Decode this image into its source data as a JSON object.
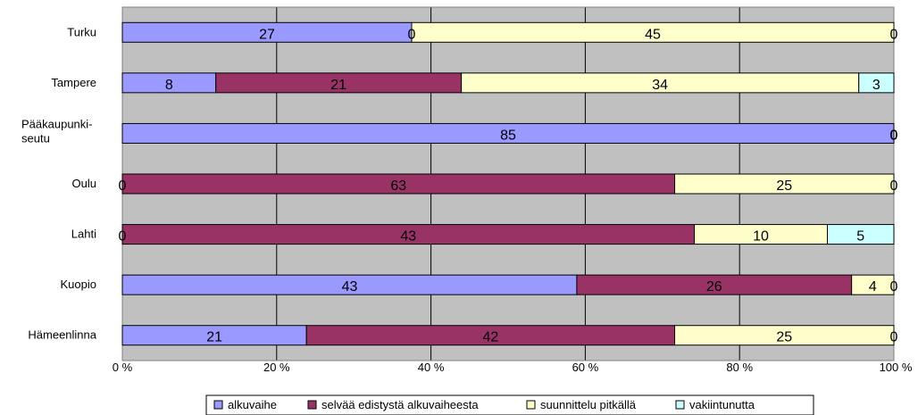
{
  "chart_data": {
    "type": "bar",
    "orientation": "horizontal",
    "stacked": "percent",
    "categories": [
      "Turku",
      "Tampere",
      "Pääkaupunki- seutu",
      "Oulu",
      "Lahti",
      "Kuopio",
      "Hämeenlinna"
    ],
    "category_lines": [
      [
        "Turku"
      ],
      [
        "Tampere"
      ],
      [
        "Pääkaupunki-",
        "seutu"
      ],
      [
        "Oulu"
      ],
      [
        "Lahti"
      ],
      [
        "Kuopio"
      ],
      [
        "Hämeenlinna"
      ]
    ],
    "series": [
      {
        "name": "alkuvaihe",
        "color": "#9999ff",
        "values": [
          27,
          8,
          85,
          0,
          0,
          43,
          21
        ]
      },
      {
        "name": "selvää edistystä alkuvaiheesta",
        "color": "#993366",
        "values": [
          0,
          21,
          0,
          63,
          43,
          26,
          42
        ]
      },
      {
        "name": "suunnittelu pitkällä",
        "color": "#ffffcc",
        "values": [
          45,
          34,
          0,
          25,
          10,
          4,
          25
        ]
      },
      {
        "name": "vakiintunutta",
        "color": "#ccffff",
        "values": [
          0,
          3,
          0,
          0,
          5,
          0,
          0
        ]
      }
    ],
    "xlim": [
      0,
      100
    ],
    "xticks": [
      "0 %",
      "20 %",
      "40 %",
      "60 %",
      "80 %",
      "100 %"
    ],
    "grid": true,
    "plot_background": "#c0c0c0",
    "legend_position": "bottom"
  }
}
